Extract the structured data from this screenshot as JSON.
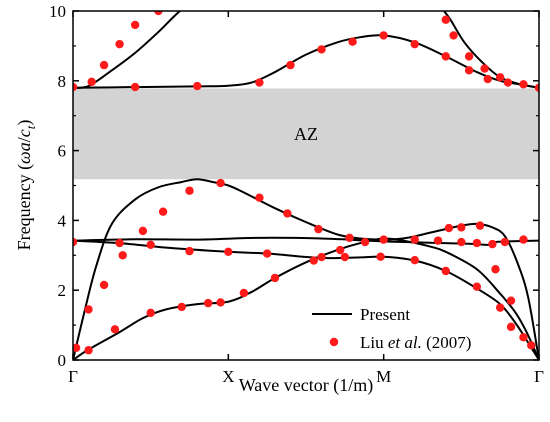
{
  "chart_data": {
    "type": "line",
    "xlabel": "Wave vector (1/m)",
    "ylabel": {
      "prefix": "Frequency  (",
      "omega": "ω",
      "a": "a",
      "slash": "/",
      "c": "c",
      "sub": "t",
      "suffix": ")"
    },
    "xlim": [
      0,
      3
    ],
    "ylim": [
      0,
      10
    ],
    "x_ticks": [
      {
        "value": 0,
        "label": "Γ"
      },
      {
        "value": 1,
        "label": "X"
      },
      {
        "value": 2,
        "label": "M"
      },
      {
        "value": 3,
        "label": "Γ"
      }
    ],
    "y_ticks": [
      {
        "value": 0,
        "label": "0"
      },
      {
        "value": 2,
        "label": "2"
      },
      {
        "value": 4,
        "label": "4"
      },
      {
        "value": 6,
        "label": "6"
      },
      {
        "value": 8,
        "label": "8"
      },
      {
        "value": 10,
        "label": "10"
      }
    ],
    "band_gap": {
      "label": "AZ",
      "y_min": 5.18,
      "y_max": 7.78,
      "color": "#d3d3d3"
    },
    "legend": {
      "position": "bottom-right",
      "entries": [
        {
          "kind": "line",
          "text": "Present"
        },
        {
          "kind": "marker",
          "text_parts": [
            "Liu ",
            "et al.",
            " (2007)"
          ]
        }
      ]
    },
    "line_color": "#000000",
    "marker_color": "#ff1a1a",
    "present_series": [
      [
        [
          0,
          0
        ],
        [
          0.08,
          1.5
        ],
        [
          0.15,
          2.7
        ],
        [
          0.25,
          3.9
        ],
        [
          0.4,
          4.6
        ],
        [
          0.55,
          4.95
        ],
        [
          0.7,
          5.1
        ],
        [
          0.8,
          5.18
        ],
        [
          0.9,
          5.1
        ],
        [
          1,
          5.0
        ],
        [
          1.1,
          4.8
        ],
        [
          1.3,
          4.35
        ],
        [
          1.5,
          3.95
        ],
        [
          1.7,
          3.6
        ],
        [
          1.85,
          3.48
        ],
        [
          2,
          3.45
        ],
        [
          2.15,
          3.5
        ],
        [
          2.3,
          3.65
        ],
        [
          2.5,
          3.85
        ],
        [
          2.6,
          3.9
        ],
        [
          2.7,
          3.8
        ],
        [
          2.78,
          3.55
        ],
        [
          2.86,
          2.8
        ],
        [
          2.93,
          1.8
        ],
        [
          3,
          0
        ]
      ],
      [
        [
          0,
          0
        ],
        [
          0.1,
          0.3
        ],
        [
          0.3,
          0.8
        ],
        [
          0.45,
          1.2
        ],
        [
          0.6,
          1.45
        ],
        [
          0.8,
          1.6
        ],
        [
          1,
          1.67
        ],
        [
          1.15,
          1.95
        ],
        [
          1.3,
          2.35
        ],
        [
          1.5,
          2.8
        ],
        [
          1.7,
          3.15
        ],
        [
          1.85,
          3.35
        ],
        [
          2,
          3.48
        ],
        [
          2.15,
          3.4
        ],
        [
          2.3,
          3.25
        ],
        [
          2.4,
          3.1
        ],
        [
          2.6,
          2.6
        ],
        [
          2.75,
          1.9
        ],
        [
          2.85,
          1.35
        ],
        [
          2.92,
          0.8
        ],
        [
          3,
          0
        ]
      ],
      [
        [
          0,
          3.42
        ],
        [
          0.3,
          3.35
        ],
        [
          0.6,
          3.22
        ],
        [
          1,
          3.1
        ],
        [
          1.25,
          3.05
        ],
        [
          1.5,
          2.95
        ],
        [
          1.65,
          2.92
        ],
        [
          1.85,
          2.94
        ],
        [
          2,
          2.96
        ],
        [
          2.2,
          2.85
        ],
        [
          2.4,
          2.55
        ],
        [
          2.6,
          2.05
        ],
        [
          2.75,
          1.6
        ],
        [
          2.85,
          1.05
        ],
        [
          2.93,
          0.5
        ],
        [
          3,
          0
        ]
      ],
      [
        [
          0,
          3.42
        ],
        [
          0.4,
          3.46
        ],
        [
          0.8,
          3.45
        ],
        [
          1.2,
          3.5
        ],
        [
          1.6,
          3.48
        ],
        [
          2,
          3.4
        ],
        [
          2.3,
          3.36
        ],
        [
          2.55,
          3.33
        ],
        [
          2.68,
          3.3
        ],
        [
          2.72,
          3.38
        ],
        [
          2.8,
          3.4
        ],
        [
          3,
          3.42
        ]
      ],
      [
        [
          0,
          7.8
        ],
        [
          0.1,
          7.85
        ],
        [
          0.25,
          8.3
        ],
        [
          0.4,
          8.8
        ],
        [
          0.55,
          9.4
        ],
        [
          0.64,
          9.8
        ],
        [
          0.7,
          10.05
        ]
      ],
      [
        [
          0,
          7.8
        ],
        [
          0.4,
          7.82
        ],
        [
          0.8,
          7.84
        ],
        [
          1,
          7.86
        ],
        [
          1.15,
          7.95
        ],
        [
          1.3,
          8.25
        ],
        [
          1.5,
          8.75
        ],
        [
          1.7,
          9.1
        ],
        [
          1.85,
          9.25
        ],
        [
          2,
          9.3
        ],
        [
          2.2,
          9.1
        ],
        [
          2.4,
          8.7
        ],
        [
          2.6,
          8.25
        ],
        [
          2.75,
          8.0
        ],
        [
          2.9,
          7.88
        ],
        [
          3,
          7.8
        ]
      ],
      [
        [
          2.38,
          10.05
        ],
        [
          2.43,
          9.75
        ],
        [
          2.52,
          9.1
        ],
        [
          2.63,
          8.55
        ],
        [
          2.75,
          8.1
        ],
        [
          2.88,
          7.9
        ],
        [
          3,
          7.8
        ]
      ]
    ],
    "reference_points": [
      [
        0.02,
        0.35
      ],
      [
        0.1,
        0.28
      ],
      [
        0.27,
        0.88
      ],
      [
        0.5,
        1.35
      ],
      [
        0.7,
        1.52
      ],
      [
        0.87,
        1.63
      ],
      [
        0.95,
        1.65
      ],
      [
        1.1,
        1.92
      ],
      [
        1.3,
        2.35
      ],
      [
        1.55,
        2.85
      ],
      [
        1.72,
        3.15
      ],
      [
        1.88,
        3.38
      ],
      [
        0.1,
        1.45
      ],
      [
        0.2,
        2.15
      ],
      [
        0.32,
        3.0
      ],
      [
        0.45,
        3.7
      ],
      [
        0.58,
        4.25
      ],
      [
        0.75,
        4.85
      ],
      [
        0.95,
        5.07
      ],
      [
        1.2,
        4.65
      ],
      [
        1.38,
        4.2
      ],
      [
        1.58,
        3.75
      ],
      [
        1.78,
        3.5
      ],
      [
        0,
        3.38
      ],
      [
        0.3,
        3.35
      ],
      [
        0.5,
        3.3
      ],
      [
        0.75,
        3.12
      ],
      [
        1.0,
        3.1
      ],
      [
        1.25,
        3.05
      ],
      [
        1.6,
        2.95
      ],
      [
        1.75,
        2.95
      ],
      [
        1.98,
        2.96
      ],
      [
        2.2,
        2.86
      ],
      [
        2.4,
        2.55
      ],
      [
        2.6,
        2.1
      ],
      [
        2.75,
        1.5
      ],
      [
        2.82,
        0.95
      ],
      [
        2.0,
        3.45
      ],
      [
        2.2,
        3.45
      ],
      [
        2.35,
        3.42
      ],
      [
        2.5,
        3.38
      ],
      [
        2.6,
        3.35
      ],
      [
        2.7,
        3.32
      ],
      [
        2.78,
        3.38
      ],
      [
        2.9,
        3.45
      ],
      [
        2.42,
        3.78
      ],
      [
        2.5,
        3.8
      ],
      [
        2.62,
        3.85
      ],
      [
        2.72,
        2.6
      ],
      [
        2.82,
        1.7
      ],
      [
        2.9,
        0.65
      ],
      [
        2.95,
        0.42
      ],
      [
        0,
        7.82
      ],
      [
        0.12,
        7.97
      ],
      [
        0.2,
        8.45
      ],
      [
        0.3,
        9.05
      ],
      [
        0.4,
        9.6
      ],
      [
        0.55,
        10.0
      ],
      [
        0.4,
        7.82
      ],
      [
        0.8,
        7.85
      ],
      [
        1.2,
        7.95
      ],
      [
        1.4,
        8.45
      ],
      [
        1.6,
        8.9
      ],
      [
        1.8,
        9.12
      ],
      [
        2,
        9.3
      ],
      [
        2.2,
        9.05
      ],
      [
        2.4,
        8.7
      ],
      [
        2.55,
        8.3
      ],
      [
        2.67,
        8.05
      ],
      [
        2.8,
        7.95
      ],
      [
        3,
        7.8
      ],
      [
        2.4,
        9.75
      ],
      [
        2.45,
        9.3
      ],
      [
        2.55,
        8.7
      ],
      [
        2.65,
        8.35
      ],
      [
        2.75,
        8.1
      ],
      [
        2.9,
        7.9
      ]
    ]
  }
}
